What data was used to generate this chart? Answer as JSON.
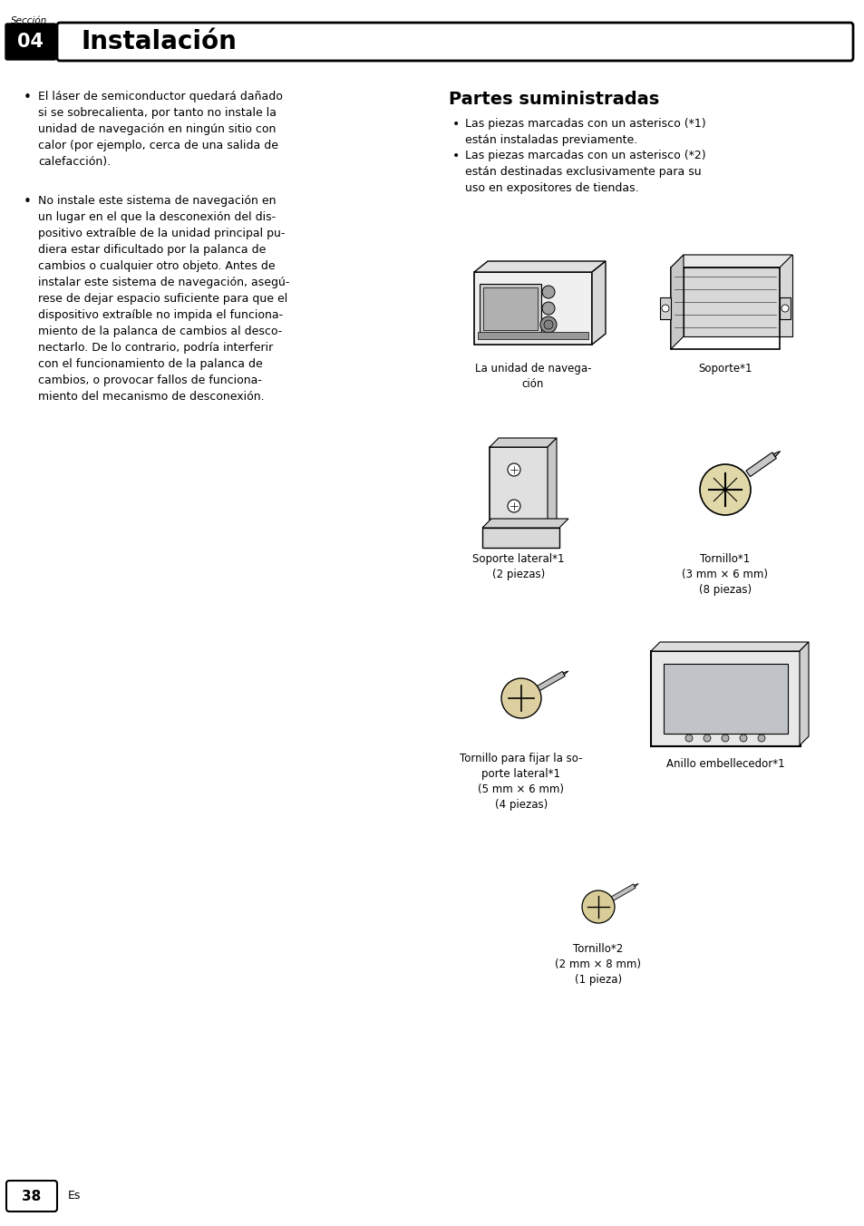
{
  "background_color": "#ffffff",
  "section_label": "Sección",
  "section_number": "04",
  "section_title": "Instalación",
  "page_number": "38",
  "page_lang": "Es",
  "left_bullet1": "El láser de semiconductor quedará dañado\nsi se sobrecalienta, por tanto no instale la\nunidad de navegación en ningún sitio con\ncalor (por ejemplo, cerca de una salida de\ncalefacción).",
  "left_bullet2": "No instale este sistema de navegación en\nun lugar en el que la desconexión del dis-\npositivo extraíble de la unidad principal pu-\ndiera estar dificultado por la palanca de\ncambios o cualquier otro objeto. Antes de\ninstalar este sistema de navegación, asegú-\nrese de dejar espacio suficiente para que el\ndispositivo extraíble no impida el funciona-\nmiento de la palanca de cambios al desco-\nnectarlo. De lo contrario, podría interferir\ncon el funcionamiento de la palanca de\ncambios, o provocar fallos de funciona-\nmiento del mecanismo de desconexión.",
  "right_title": "Partes suministradas",
  "right_b1": "Las piezas marcadas con un asterisco (*1)\nestán instaladas previamente.",
  "right_b2": "Las piezas marcadas con un asterisco (*2)\nestán destinadas exclusivamente para su\nuso en expositores de tiendas.",
  "cap1": "La unidad de navega-\nción",
  "cap2": "Soporte*1",
  "cap3": "Soporte lateral*1\n(2 piezas)",
  "cap4": "Tornillo*1\n(3 mm × 6 mm)\n(8 piezas)",
  "cap5": "Tornillo para fijar la so-\nporte lateral*1\n(5 mm × 6 mm)\n(4 piezas)",
  "cap6": "Anillo embellecedor*1",
  "cap7": "Tornillo*2\n(2 mm × 8 mm)\n(1 pieza)"
}
